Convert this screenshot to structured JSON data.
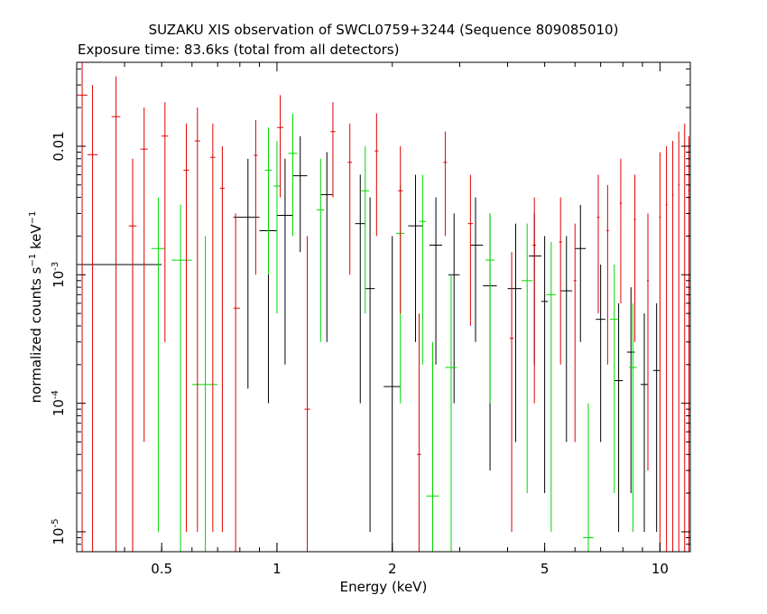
{
  "chart_data": {
    "type": "scatter",
    "title": "SUZAKU XIS observation of SWCL0759+3244 (Sequence 809085010)",
    "subtitle": "Exposure time: 83.6ks (total from all detectors)",
    "xlabel": "Energy (keV)",
    "ylabel": "normalized counts s-1 keV-1",
    "x_scale": "log",
    "y_scale": "log",
    "xlim": [
      0.3,
      12.0
    ],
    "ylim": [
      7e-06,
      0.045
    ],
    "x_ticks": [
      {
        "value": 0.5,
        "label": "0.5"
      },
      {
        "value": 1,
        "label": "1"
      },
      {
        "value": 2,
        "label": "2"
      },
      {
        "value": 5,
        "label": "5"
      },
      {
        "value": 10,
        "label": "10"
      }
    ],
    "y_ticks": [
      {
        "value": 0.01,
        "label": "0.01",
        "mantissa": "",
        "exponent": ""
      },
      {
        "value": 0.001,
        "label": "",
        "mantissa": "10",
        "exponent": "-3"
      },
      {
        "value": 0.0001,
        "label": "",
        "mantissa": "10",
        "exponent": "-4"
      },
      {
        "value": 1e-05,
        "label": "",
        "mantissa": "10",
        "exponent": "-5"
      }
    ],
    "series": [
      {
        "color": "#000000",
        "points": [
          {
            "x": 0.42,
            "xerr": [
              0.3,
              0.5
            ],
            "y": 0.0012,
            "yerr": [
              1e-06,
              0.003
            ]
          },
          {
            "x": 0.84,
            "xerr": [
              0.77,
              0.9
            ],
            "y": 0.0028,
            "yerr": [
              0.00013,
              0.008
            ]
          },
          {
            "x": 0.95,
            "xerr": [
              0.9,
              1.0
            ],
            "y": 0.0022,
            "yerr": [
              0.0001,
              0.006
            ]
          },
          {
            "x": 1.05,
            "xerr": [
              1.0,
              1.1
            ],
            "y": 0.0029,
            "yerr": [
              0.0002,
              0.008
            ]
          },
          {
            "x": 1.15,
            "xerr": [
              1.1,
              1.2
            ],
            "y": 0.0059,
            "yerr": [
              0.0015,
              0.012
            ]
          },
          {
            "x": 1.35,
            "xerr": [
              1.3,
              1.4
            ],
            "y": 0.0042,
            "yerr": [
              0.0003,
              0.009
            ]
          },
          {
            "x": 1.65,
            "xerr": [
              1.6,
              1.7
            ],
            "y": 0.0025,
            "yerr": [
              0.0001,
              0.006
            ]
          },
          {
            "x": 1.75,
            "xerr": [
              1.7,
              1.8
            ],
            "y": 0.00078,
            "yerr": [
              1e-05,
              0.004
            ]
          },
          {
            "x": 2.0,
            "xerr": [
              1.9,
              2.1
            ],
            "y": 0.000135,
            "yerr": [
              1e-06,
              0.002
            ]
          },
          {
            "x": 2.3,
            "xerr": [
              2.2,
              2.4
            ],
            "y": 0.0024,
            "yerr": [
              0.0003,
              0.006
            ]
          },
          {
            "x": 2.6,
            "xerr": [
              2.5,
              2.7
            ],
            "y": 0.0017,
            "yerr": [
              0.0002,
              0.004
            ]
          },
          {
            "x": 2.9,
            "xerr": [
              2.8,
              3.0
            ],
            "y": 0.001,
            "yerr": [
              0.0001,
              0.003
            ]
          },
          {
            "x": 3.3,
            "xerr": [
              3.2,
              3.45
            ],
            "y": 0.0017,
            "yerr": [
              0.0003,
              0.004
            ]
          },
          {
            "x": 3.6,
            "xerr": [
              3.45,
              3.75
            ],
            "y": 0.00082,
            "yerr": [
              3e-05,
              0.003
            ]
          },
          {
            "x": 4.2,
            "xerr": [
              4.0,
              4.35
            ],
            "y": 0.00078,
            "yerr": [
              5e-05,
              0.0025
            ]
          },
          {
            "x": 4.7,
            "xerr": [
              4.55,
              4.9
            ],
            "y": 0.0014,
            "yerr": [
              0.0002,
              0.003
            ]
          },
          {
            "x": 5.0,
            "xerr": [
              4.9,
              5.1
            ],
            "y": 0.00062,
            "yerr": [
              2e-05,
              0.002
            ]
          },
          {
            "x": 5.7,
            "xerr": [
              5.5,
              5.9
            ],
            "y": 0.00075,
            "yerr": [
              5e-05,
              0.002
            ]
          },
          {
            "x": 6.2,
            "xerr": [
              6.0,
              6.4
            ],
            "y": 0.0016,
            "yerr": [
              0.0003,
              0.0035
            ]
          },
          {
            "x": 7.0,
            "xerr": [
              6.8,
              7.2
            ],
            "y": 0.00045,
            "yerr": [
              5e-05,
              0.0012
            ]
          },
          {
            "x": 7.8,
            "xerr": [
              7.6,
              8.0
            ],
            "y": 0.00015,
            "yerr": [
              1e-05,
              0.0006
            ]
          },
          {
            "x": 8.4,
            "xerr": [
              8.2,
              8.6
            ],
            "y": 0.00025,
            "yerr": [
              2e-05,
              0.0008
            ]
          },
          {
            "x": 9.1,
            "xerr": [
              8.9,
              9.3
            ],
            "y": 0.00014,
            "yerr": [
              1e-05,
              0.0005
            ]
          },
          {
            "x": 9.8,
            "xerr": [
              9.6,
              10.0
            ],
            "y": 0.00018,
            "yerr": [
              1e-05,
              0.0006
            ]
          }
        ]
      },
      {
        "color": "#00d900",
        "points": [
          {
            "x": 0.49,
            "xerr": [
              0.47,
              0.51
            ],
            "y": 0.0016,
            "yerr": [
              1e-05,
              0.004
            ]
          },
          {
            "x": 0.56,
            "xerr": [
              0.53,
              0.6
            ],
            "y": 0.0013,
            "yerr": [
              1e-06,
              0.0035
            ]
          },
          {
            "x": 0.65,
            "xerr": [
              0.6,
              0.7
            ],
            "y": 0.00014,
            "yerr": [
              1e-06,
              0.002
            ]
          },
          {
            "x": 0.95,
            "xerr": [
              0.93,
              0.97
            ],
            "y": 0.0065,
            "yerr": [
              0.001,
              0.014
            ]
          },
          {
            "x": 1.0,
            "xerr": [
              0.98,
              1.02
            ],
            "y": 0.0049,
            "yerr": [
              0.0005,
              0.011
            ]
          },
          {
            "x": 1.1,
            "xerr": [
              1.07,
              1.13
            ],
            "y": 0.0088,
            "yerr": [
              0.002,
              0.018
            ]
          },
          {
            "x": 1.3,
            "xerr": [
              1.27,
              1.33
            ],
            "y": 0.0032,
            "yerr": [
              0.0003,
              0.008
            ]
          },
          {
            "x": 1.7,
            "xerr": [
              1.66,
              1.74
            ],
            "y": 0.0045,
            "yerr": [
              0.0005,
              0.01
            ]
          },
          {
            "x": 2.1,
            "xerr": [
              2.05,
              2.15
            ],
            "y": 0.0021,
            "yerr": [
              0.0001,
              0.005
            ]
          },
          {
            "x": 2.4,
            "xerr": [
              2.35,
              2.45
            ],
            "y": 0.0026,
            "yerr": [
              0.0002,
              0.006
            ]
          },
          {
            "x": 2.55,
            "xerr": [
              2.45,
              2.65
            ],
            "y": 1.9e-05,
            "yerr": [
              1e-06,
              0.0003
            ]
          },
          {
            "x": 2.85,
            "xerr": [
              2.75,
              2.95
            ],
            "y": 0.00019,
            "yerr": [
              1e-06,
              0.001
            ]
          },
          {
            "x": 3.6,
            "xerr": [
              3.5,
              3.7
            ],
            "y": 0.0013,
            "yerr": [
              0.0001,
              0.003
            ]
          },
          {
            "x": 4.5,
            "xerr": [
              4.35,
              4.65
            ],
            "y": 0.0009,
            "yerr": [
              2e-05,
              0.0025
            ]
          },
          {
            "x": 5.2,
            "xerr": [
              5.05,
              5.35
            ],
            "y": 0.0007,
            "yerr": [
              1e-05,
              0.0018
            ]
          },
          {
            "x": 6.5,
            "xerr": [
              6.3,
              6.7
            ],
            "y": 9e-06,
            "yerr": [
              1e-06,
              0.0001
            ]
          },
          {
            "x": 7.6,
            "xerr": [
              7.4,
              7.8
            ],
            "y": 0.00045,
            "yerr": [
              2e-05,
              0.0012
            ]
          },
          {
            "x": 8.5,
            "xerr": [
              8.3,
              8.7
            ],
            "y": 0.00019,
            "yerr": [
              1e-05,
              0.0006
            ]
          }
        ]
      },
      {
        "color": "#e00000",
        "points": [
          {
            "x": 0.31,
            "xerr": [
              0.3,
              0.32
            ],
            "y": 0.025,
            "yerr": [
              1e-06,
              0.045
            ]
          },
          {
            "x": 0.33,
            "xerr": [
              0.32,
              0.34
            ],
            "y": 0.0086,
            "yerr": [
              1e-06,
              0.03
            ]
          },
          {
            "x": 0.38,
            "xerr": [
              0.37,
              0.39
            ],
            "y": 0.017,
            "yerr": [
              1e-06,
              0.035
            ]
          },
          {
            "x": 0.42,
            "xerr": [
              0.41,
              0.43
            ],
            "y": 0.0024,
            "yerr": [
              1e-06,
              0.008
            ]
          },
          {
            "x": 0.45,
            "xerr": [
              0.44,
              0.46
            ],
            "y": 0.0095,
            "yerr": [
              5e-05,
              0.02
            ]
          },
          {
            "x": 0.51,
            "xerr": [
              0.5,
              0.52
            ],
            "y": 0.012,
            "yerr": [
              0.0003,
              0.022
            ]
          },
          {
            "x": 0.58,
            "xerr": [
              0.57,
              0.59
            ],
            "y": 0.0065,
            "yerr": [
              1e-05,
              0.015
            ]
          },
          {
            "x": 0.62,
            "xerr": [
              0.61,
              0.63
            ],
            "y": 0.011,
            "yerr": [
              1e-05,
              0.02
            ]
          },
          {
            "x": 0.68,
            "xerr": [
              0.67,
              0.69
            ],
            "y": 0.0082,
            "yerr": [
              1e-05,
              0.015
            ]
          },
          {
            "x": 0.72,
            "xerr": [
              0.71,
              0.73
            ],
            "y": 0.0047,
            "yerr": [
              1e-05,
              0.01
            ]
          },
          {
            "x": 0.78,
            "xerr": [
              0.77,
              0.8
            ],
            "y": 0.00055,
            "yerr": [
              1e-06,
              0.003
            ]
          },
          {
            "x": 0.88,
            "xerr": [
              0.87,
              0.89
            ],
            "y": 0.0085,
            "yerr": [
              0.001,
              0.016
            ]
          },
          {
            "x": 1.02,
            "xerr": [
              1.0,
              1.04
            ],
            "y": 0.014,
            "yerr": [
              0.004,
              0.025
            ]
          },
          {
            "x": 1.2,
            "xerr": [
              1.18,
              1.22
            ],
            "y": 9e-05,
            "yerr": [
              1e-06,
              0.002
            ]
          },
          {
            "x": 1.4,
            "xerr": [
              1.38,
              1.42
            ],
            "y": 0.013,
            "yerr": [
              0.004,
              0.022
            ]
          },
          {
            "x": 1.55,
            "xerr": [
              1.53,
              1.57
            ],
            "y": 0.0075,
            "yerr": [
              0.001,
              0.015
            ]
          },
          {
            "x": 1.82,
            "xerr": [
              1.8,
              1.84
            ],
            "y": 0.0092,
            "yerr": [
              0.002,
              0.018
            ]
          },
          {
            "x": 2.1,
            "xerr": [
              2.07,
              2.13
            ],
            "y": 0.0045,
            "yerr": [
              0.0005,
              0.01
            ]
          },
          {
            "x": 2.35,
            "xerr": [
              2.32,
              2.38
            ],
            "y": 4e-05,
            "yerr": [
              1e-06,
              0.0005
            ]
          },
          {
            "x": 2.75,
            "xerr": [
              2.72,
              2.78
            ],
            "y": 0.0075,
            "yerr": [
              0.002,
              0.013
            ]
          },
          {
            "x": 3.2,
            "xerr": [
              3.15,
              3.25
            ],
            "y": 0.0025,
            "yerr": [
              0.0004,
              0.006
            ]
          },
          {
            "x": 4.1,
            "xerr": [
              4.05,
              4.15
            ],
            "y": 0.00032,
            "yerr": [
              1e-05,
              0.0015
            ]
          },
          {
            "x": 4.7,
            "xerr": [
              4.65,
              4.75
            ],
            "y": 0.0017,
            "yerr": [
              0.0001,
              0.004
            ]
          },
          {
            "x": 5.5,
            "xerr": [
              5.45,
              5.55
            ],
            "y": 0.0018,
            "yerr": [
              0.0002,
              0.004
            ]
          },
          {
            "x": 6.0,
            "xerr": [
              5.95,
              6.05
            ],
            "y": 0.0009,
            "yerr": [
              5e-05,
              0.0025
            ]
          },
          {
            "x": 6.9,
            "xerr": [
              6.85,
              6.95
            ],
            "y": 0.0028,
            "yerr": [
              0.0005,
              0.006
            ]
          },
          {
            "x": 7.3,
            "xerr": [
              7.25,
              7.35
            ],
            "y": 0.0022,
            "yerr": [
              0.0002,
              0.005
            ]
          },
          {
            "x": 7.9,
            "xerr": [
              7.85,
              7.95
            ],
            "y": 0.0036,
            "yerr": [
              0.0006,
              0.008
            ]
          },
          {
            "x": 8.6,
            "xerr": [
              8.55,
              8.65
            ],
            "y": 0.0027,
            "yerr": [
              0.0003,
              0.006
            ]
          },
          {
            "x": 9.3,
            "xerr": [
              9.25,
              9.35
            ],
            "y": 0.0009,
            "yerr": [
              3e-05,
              0.003
            ]
          },
          {
            "x": 10.0,
            "xerr": [
              9.95,
              10.05
            ],
            "y": 0.0028,
            "yerr": [
              1e-06,
              0.009
            ]
          },
          {
            "x": 10.4,
            "xerr": [
              10.35,
              10.45
            ],
            "y": 0.0035,
            "yerr": [
              1e-06,
              0.01
            ]
          },
          {
            "x": 10.8,
            "xerr": [
              10.75,
              10.85
            ],
            "y": 0.0042,
            "yerr": [
              1e-06,
              0.011
            ]
          },
          {
            "x": 11.2,
            "xerr": [
              11.15,
              11.25
            ],
            "y": 0.005,
            "yerr": [
              1e-06,
              0.013
            ]
          },
          {
            "x": 11.6,
            "xerr": [
              11.55,
              11.65
            ],
            "y": 0.006,
            "yerr": [
              1e-06,
              0.015
            ]
          },
          {
            "x": 11.9,
            "xerr": [
              11.85,
              11.95
            ],
            "y": 0.0045,
            "yerr": [
              1e-06,
              0.012
            ]
          }
        ]
      }
    ]
  }
}
